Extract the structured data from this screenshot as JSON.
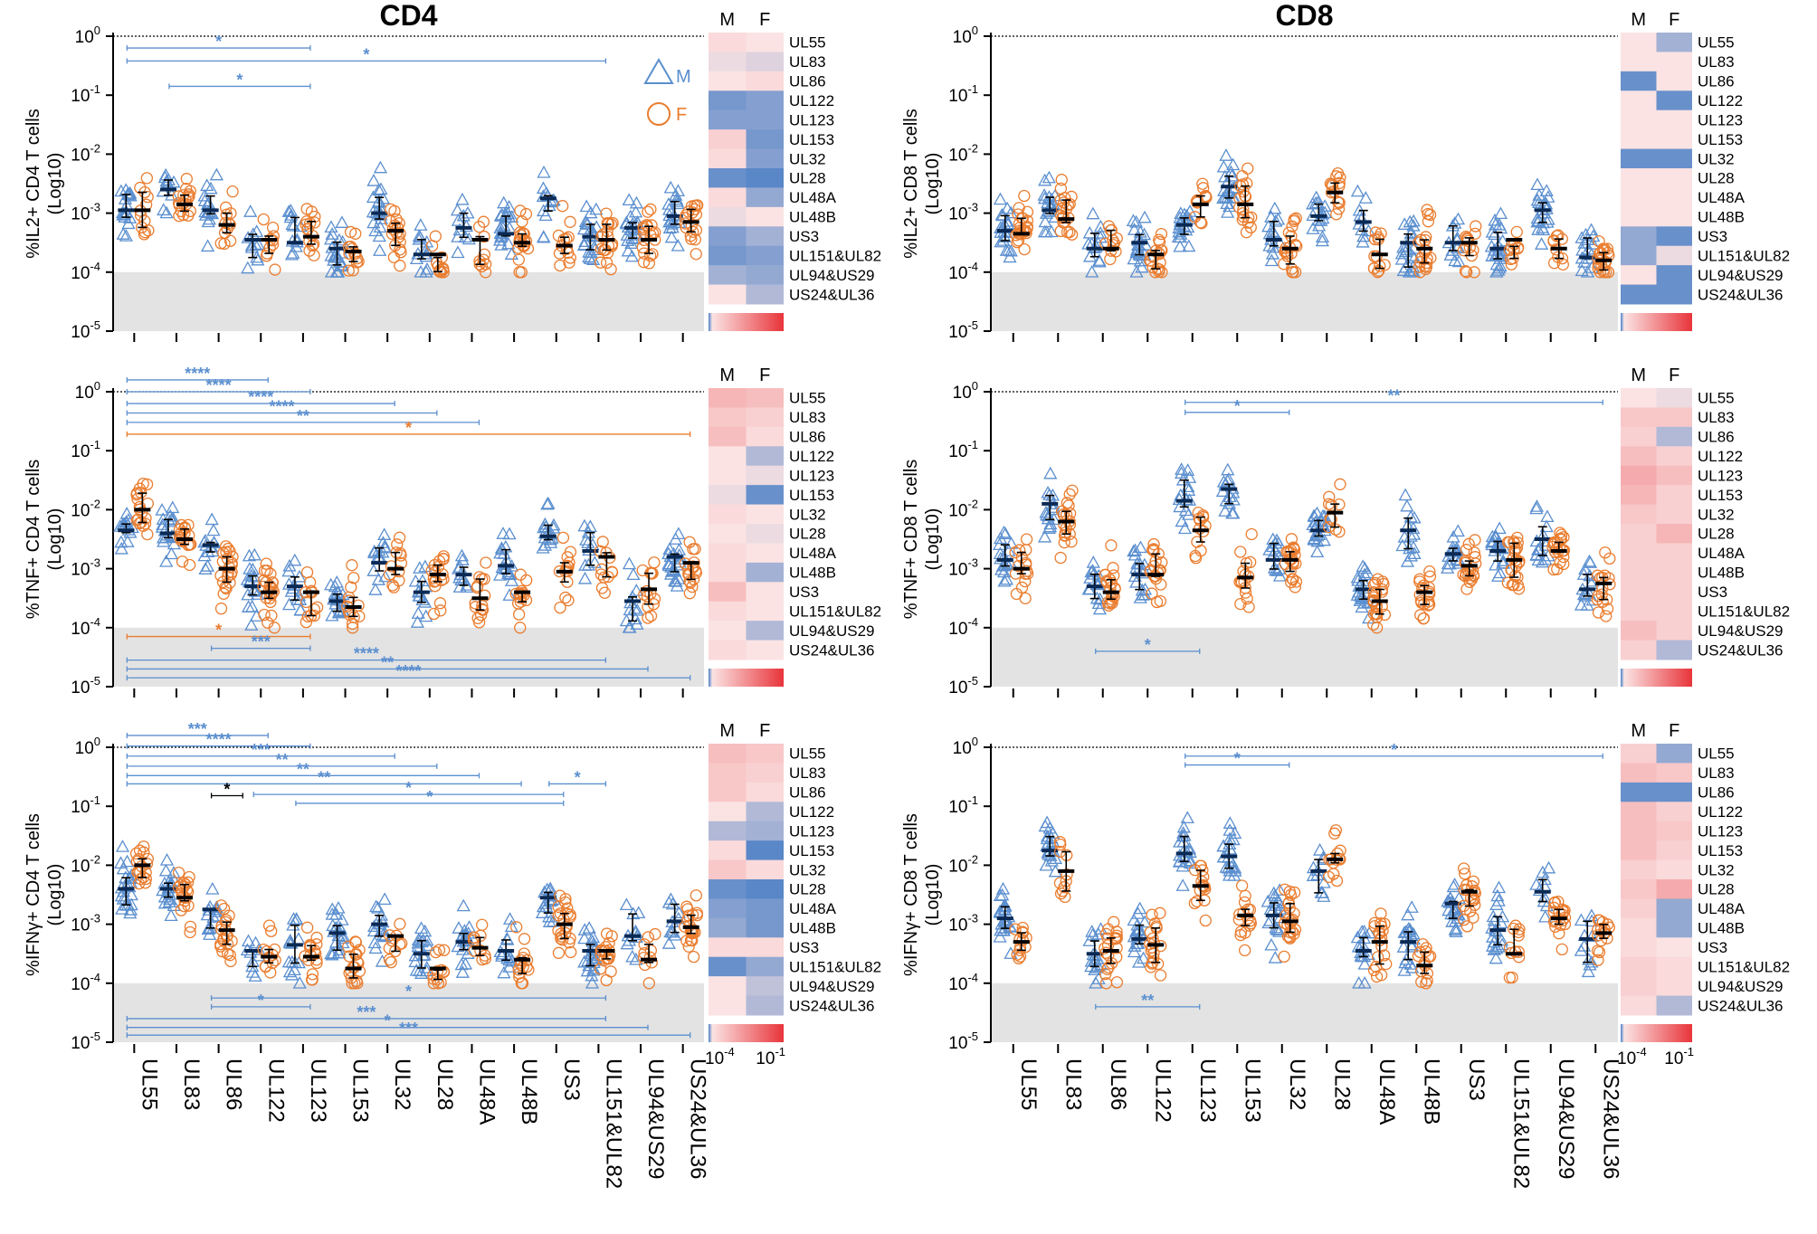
{
  "chart_data": {
    "type": "scatter",
    "y_scale": "log10",
    "ylim": [
      -5,
      0
    ],
    "y_ticks": [
      {
        "base": "10",
        "exp": "0"
      },
      {
        "base": "10",
        "exp": "-1"
      },
      {
        "base": "10",
        "exp": "-2"
      },
      {
        "base": "10",
        "exp": "-3"
      },
      {
        "base": "10",
        "exp": "-4"
      },
      {
        "base": "10",
        "exp": "-5"
      }
    ],
    "detection_limit": -4,
    "categories": [
      "UL55",
      "UL83",
      "UL86",
      "UL122",
      "UL123",
      "UL153",
      "UL32",
      "UL28",
      "UL48A",
      "UL48B",
      "US3",
      "UL151&UL82",
      "UL94&US29",
      "US24&UL36"
    ],
    "legend": [
      {
        "marker": "triangle",
        "label": "M",
        "color": "#5b8fcf"
      },
      {
        "marker": "circle",
        "label": "F",
        "color": "#ea7d2f"
      }
    ],
    "column_titles": [
      "CD4",
      "CD8"
    ],
    "heatmap": {
      "columns": [
        "M",
        "F"
      ],
      "scale_min": {
        "base": "10",
        "exp": "-4"
      },
      "scale_max": {
        "base": "10",
        "exp": "-1"
      },
      "low_color": "#4a7fc6",
      "mid_color": "#f4f4f4",
      "high_color": "#e8343a"
    },
    "panels": [
      {
        "id": "cd4-il2",
        "ylabel_line1": "%IL2+ CD4 T cells",
        "ylabel_line2": "(Log10)",
        "medians_M": [
          -2.95,
          -2.6,
          -2.95,
          -3.45,
          -3.5,
          -3.6,
          -3.0,
          -3.7,
          -3.25,
          -3.35,
          -2.75,
          -3.4,
          -3.25,
          -3.05
        ],
        "medians_F": [
          -2.95,
          -2.85,
          -3.2,
          -3.45,
          -3.4,
          -3.65,
          -3.3,
          -3.7,
          -3.45,
          -3.5,
          -3.55,
          -3.45,
          -3.45,
          -3.15
        ],
        "heat_M": [
          -3.0,
          -3.2,
          -3.1,
          -4.0,
          -3.9,
          -2.9,
          -3.0,
          -4.1,
          -3.0,
          -3.2,
          -3.9,
          -4.0,
          -3.7,
          -3.1
        ],
        "heat_F": [
          -3.1,
          -3.3,
          -3.0,
          -3.9,
          -3.9,
          -4.0,
          -3.9,
          -4.2,
          -3.8,
          -3.1,
          -3.7,
          -3.9,
          -3.8,
          -3.6
        ],
        "brackets": [
          {
            "from": 0,
            "to": 4,
            "y": -0.2,
            "label": "*",
            "color": "blue"
          },
          {
            "from": 0,
            "to": 11,
            "y": -0.42,
            "label": "*",
            "color": "blue"
          },
          {
            "from": 1,
            "to": 4,
            "y": -0.85,
            "label": "*",
            "color": "blue"
          }
        ]
      },
      {
        "id": "cd8-il2",
        "ylabel_line1": "%IL2+ CD8 T cells",
        "ylabel_line2": "(Log10)",
        "medians_M": [
          -3.3,
          -2.95,
          -3.6,
          -3.5,
          -3.2,
          -2.55,
          -3.45,
          -3.05,
          -3.15,
          -3.5,
          -3.5,
          -3.6,
          -2.95,
          -3.75
        ],
        "medians_F": [
          -3.35,
          -3.1,
          -3.6,
          -3.7,
          -2.85,
          -2.85,
          -3.6,
          -2.65,
          -3.7,
          -3.6,
          -3.5,
          -3.45,
          -3.6,
          -3.8
        ],
        "heat_M": [
          -3.1,
          -3.1,
          -4.1,
          -3.1,
          -3.1,
          -3.1,
          -4.1,
          -3.1,
          -3.1,
          -3.1,
          -3.8,
          -3.8,
          -3.1,
          -4.1
        ],
        "heat_F": [
          -3.7,
          -3.1,
          -3.1,
          -4.1,
          -3.1,
          -3.1,
          -4.1,
          -3.1,
          -3.1,
          -3.1,
          -4.1,
          -3.2,
          -4.1,
          -4.1
        ],
        "brackets": []
      },
      {
        "id": "cd4-tnf",
        "ylabel_line1": "%TNF+ CD4 T cells",
        "ylabel_line2": "(Log10)",
        "medians_M": [
          -2.35,
          -2.4,
          -2.6,
          -3.3,
          -3.3,
          -3.55,
          -2.9,
          -3.4,
          -3.1,
          -2.95,
          -2.45,
          -2.7,
          -3.55,
          -2.8
        ],
        "medians_F": [
          -2.0,
          -2.5,
          -3.0,
          -3.4,
          -3.4,
          -3.65,
          -3.0,
          -3.1,
          -3.5,
          -3.4,
          -3.05,
          -2.8,
          -3.35,
          -2.9
        ],
        "heat_M": [
          -2.6,
          -2.8,
          -2.7,
          -3.1,
          -3.1,
          -3.2,
          -3.0,
          -3.1,
          -3.0,
          -3.0,
          -2.7,
          -3.0,
          -3.1,
          -3.0
        ],
        "heat_F": [
          -2.7,
          -2.9,
          -3.0,
          -3.6,
          -3.2,
          -4.1,
          -3.1,
          -3.2,
          -3.1,
          -3.7,
          -3.1,
          -3.1,
          -3.6,
          -3.1
        ],
        "brackets": [
          {
            "from": 0,
            "to": 3,
            "y": 0.2,
            "label": "****",
            "color": "blue"
          },
          {
            "from": 0,
            "to": 4,
            "y": 0.0,
            "label": "****",
            "color": "blue"
          },
          {
            "from": 0,
            "to": 6,
            "y": -0.2,
            "label": "****",
            "color": "blue"
          },
          {
            "from": 0,
            "to": 7,
            "y": -0.36,
            "label": "****",
            "color": "blue"
          },
          {
            "from": 0,
            "to": 8,
            "y": -0.52,
            "label": "**",
            "color": "blue"
          },
          {
            "from": 0,
            "to": 13,
            "y": -0.72,
            "label": "*",
            "color": "orange"
          },
          {
            "from": 0,
            "to": 4,
            "y": -4.15,
            "label": "*",
            "color": "orange"
          },
          {
            "from": 2,
            "to": 4,
            "y": -4.35,
            "label": "***",
            "color": "blue"
          },
          {
            "from": 0,
            "to": 11,
            "y": -4.55,
            "label": "****",
            "color": "blue"
          },
          {
            "from": 0,
            "to": 12,
            "y": -4.7,
            "label": "**",
            "color": "blue"
          },
          {
            "from": 0,
            "to": 13,
            "y": -4.85,
            "label": "****",
            "color": "blue"
          }
        ]
      },
      {
        "id": "cd8-tnf",
        "ylabel_line1": "%TNF+ CD8 T cells",
        "ylabel_line2": "(Log10)",
        "medians_M": [
          -2.85,
          -1.9,
          -3.3,
          -3.1,
          -1.85,
          -1.65,
          -2.85,
          -2.35,
          -3.35,
          -2.35,
          -2.75,
          -2.7,
          -2.5,
          -3.35
        ],
        "medians_F": [
          -3.0,
          -2.2,
          -3.4,
          -3.1,
          -2.35,
          -3.15,
          -2.85,
          -2.05,
          -3.55,
          -3.4,
          -2.95,
          -2.85,
          -2.7,
          -3.25
        ],
        "heat_M": [
          -3.1,
          -2.8,
          -2.9,
          -2.7,
          -2.5,
          -2.6,
          -2.8,
          -2.9,
          -2.9,
          -2.9,
          -2.9,
          -2.9,
          -2.7,
          -2.9
        ],
        "heat_F": [
          -3.2,
          -2.8,
          -3.6,
          -2.9,
          -2.7,
          -2.9,
          -2.9,
          -2.6,
          -2.9,
          -2.9,
          -2.9,
          -2.9,
          -2.9,
          -3.6
        ],
        "brackets": [
          {
            "from": 4,
            "to": 6,
            "y": -0.35,
            "label": "*",
            "color": "blue"
          },
          {
            "from": 4,
            "to": 13,
            "y": -0.18,
            "label": "**",
            "color": "blue"
          },
          {
            "from": 2,
            "to": 4,
            "y": -4.4,
            "label": "*",
            "color": "blue"
          }
        ]
      },
      {
        "id": "cd4-ifng",
        "ylabel_line1": "%IFNγ+ CD4 T cells",
        "ylabel_line2": "(Log10)",
        "medians_M": [
          -2.4,
          -2.4,
          -2.75,
          -3.45,
          -3.35,
          -3.15,
          -3.0,
          -3.5,
          -3.3,
          -3.45,
          -2.55,
          -3.45,
          -3.2,
          -2.95
        ],
        "medians_F": [
          -2.0,
          -2.55,
          -3.1,
          -3.55,
          -3.55,
          -3.75,
          -3.2,
          -3.75,
          -3.4,
          -3.6,
          -3.0,
          -3.45,
          -3.6,
          -3.05
        ],
        "heat_M": [
          -2.7,
          -2.8,
          -2.8,
          -3.1,
          -3.6,
          -3.0,
          -2.8,
          -4.1,
          -3.9,
          -3.8,
          -3.0,
          -4.1,
          -3.1,
          -3.1
        ],
        "heat_F": [
          -2.8,
          -2.9,
          -3.0,
          -3.6,
          -3.7,
          -4.2,
          -3.0,
          -4.2,
          -4.0,
          -4.0,
          -3.0,
          -3.8,
          -3.5,
          -3.6
        ],
        "brackets": [
          {
            "from": 0,
            "to": 3,
            "y": 0.2,
            "label": "***",
            "color": "blue"
          },
          {
            "from": 0,
            "to": 4,
            "y": 0.02,
            "label": "****",
            "color": "blue"
          },
          {
            "from": 0,
            "to": 6,
            "y": -0.15,
            "label": "***",
            "color": "blue"
          },
          {
            "from": 0,
            "to": 7,
            "y": -0.32,
            "label": "**",
            "color": "blue"
          },
          {
            "from": 0,
            "to": 8,
            "y": -0.48,
            "label": "**",
            "color": "blue"
          },
          {
            "from": 0,
            "to": 9,
            "y": -0.62,
            "label": "**",
            "color": "blue"
          },
          {
            "from": 2,
            "to": 2.4,
            "y": -0.82,
            "label": "*",
            "color": "black"
          },
          {
            "from": 3,
            "to": 10,
            "y": -0.8,
            "label": "*",
            "color": "blue"
          },
          {
            "from": 4,
            "to": 10,
            "y": -0.95,
            "label": "*",
            "color": "blue"
          },
          {
            "from": 10,
            "to": 11,
            "y": -0.62,
            "label": "*",
            "color": "blue"
          },
          {
            "from": 2,
            "to": 11,
            "y": -4.25,
            "label": "*",
            "color": "blue"
          },
          {
            "from": 2,
            "to": 4,
            "y": -4.4,
            "label": "*",
            "color": "blue"
          },
          {
            "from": 0,
            "to": 11,
            "y": -4.6,
            "label": "***",
            "color": "blue"
          },
          {
            "from": 0,
            "to": 12,
            "y": -4.75,
            "label": "*",
            "color": "blue"
          },
          {
            "from": 0,
            "to": 13,
            "y": -4.88,
            "label": "***",
            "color": "blue"
          }
        ]
      },
      {
        "id": "cd8-ifng",
        "ylabel_line1": "%IFNγ+ CD8 T cells",
        "ylabel_line2": "(Log10)",
        "medians_M": [
          -2.9,
          -1.75,
          -3.5,
          -3.25,
          -1.8,
          -1.85,
          -2.85,
          -2.1,
          -3.45,
          -3.3,
          -2.65,
          -3.1,
          -2.45,
          -3.25
        ],
        "medians_F": [
          -3.3,
          -2.1,
          -3.45,
          -3.35,
          -2.35,
          -2.85,
          -2.95,
          -1.9,
          -3.3,
          -3.7,
          -2.45,
          -3.5,
          -2.9,
          -3.15
        ],
        "heat_M": [
          -2.9,
          -2.7,
          -4.1,
          -2.7,
          -2.7,
          -2.7,
          -2.9,
          -2.8,
          -2.9,
          -3.0,
          -3.0,
          -2.9,
          -2.9,
          -3.0
        ],
        "heat_F": [
          -3.8,
          -2.8,
          -4.1,
          -2.9,
          -2.8,
          -2.9,
          -3.0,
          -2.5,
          -3.8,
          -3.8,
          -3.1,
          -3.0,
          -3.0,
          -3.6
        ],
        "brackets": [
          {
            "from": 4,
            "to": 6,
            "y": -0.3,
            "label": "*",
            "color": "blue"
          },
          {
            "from": 4,
            "to": 13,
            "y": -0.15,
            "label": "*",
            "color": "blue"
          },
          {
            "from": 2,
            "to": 4,
            "y": -4.4,
            "label": "**",
            "color": "blue"
          }
        ]
      }
    ]
  }
}
